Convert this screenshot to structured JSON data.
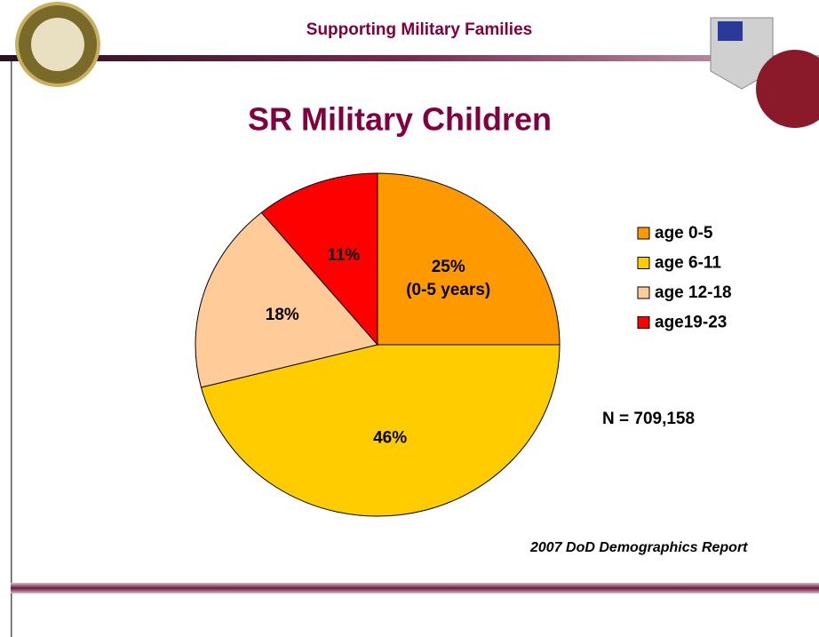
{
  "header": "Supporting Military Families",
  "chart_data": {
    "type": "pie",
    "title": "SR Military Children",
    "categories": [
      "age 0-5",
      "age 6-11",
      "age 12-18",
      "age19-23"
    ],
    "values": [
      25,
      46,
      18,
      11
    ],
    "value_labels": [
      "25%",
      "46%",
      "18%",
      "11%"
    ],
    "slice_annotation": "(0-5 years)",
    "colors": [
      "#ff9900",
      "#ffcc00",
      "#ffcc99",
      "#ff0000"
    ],
    "legend": "right",
    "annotation": "N = 709,158",
    "source": "2007 DoD Demographics Report"
  }
}
